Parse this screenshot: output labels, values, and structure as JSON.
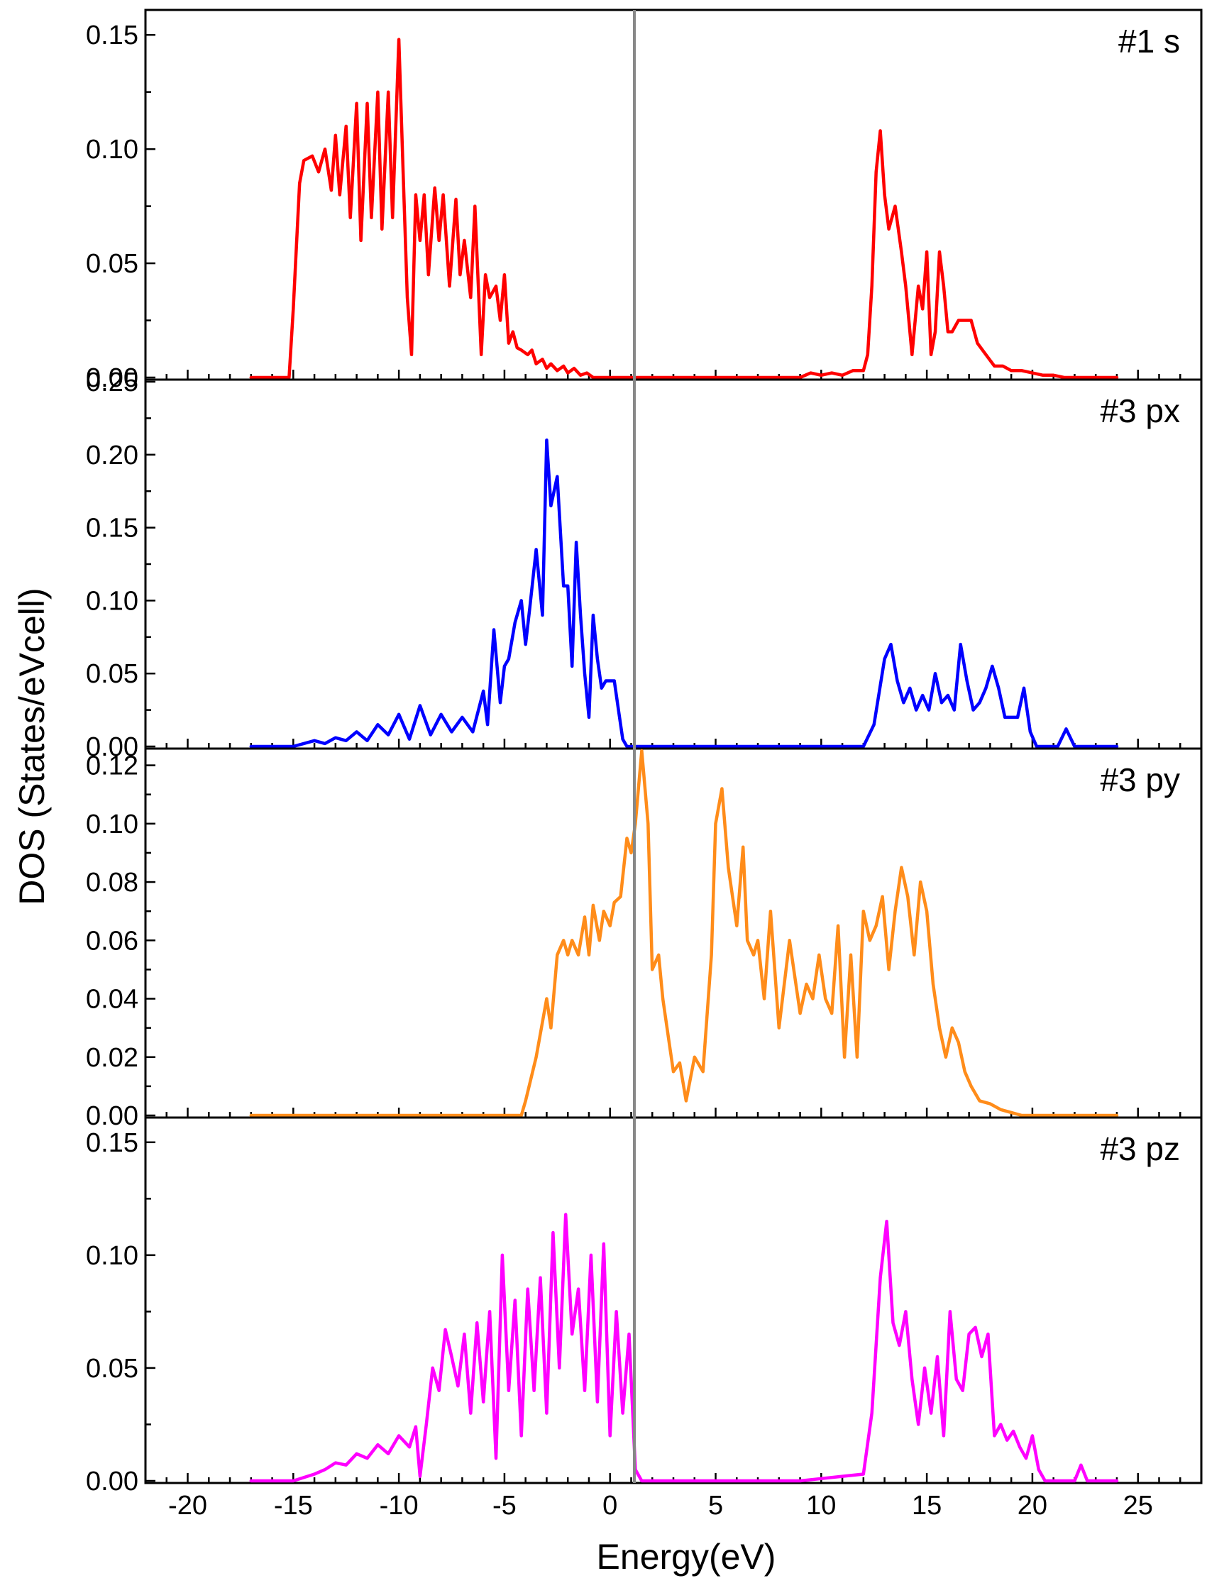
{
  "figure": {
    "ylabel": "DOS (States/eVcell)",
    "xlabel": "Energy(eV)",
    "fermi_level_color": "#888888"
  },
  "chart_data": [
    {
      "type": "line",
      "panel_label": "#1 s",
      "color": "#ff0000",
      "xlim": [
        -22,
        28
      ],
      "ylim": [
        0,
        0.16
      ],
      "xticks": [
        -20,
        -15,
        -10,
        -5,
        0,
        5,
        10,
        15,
        20,
        25
      ],
      "yticks": [
        0.0,
        0.05,
        0.1,
        0.15
      ],
      "ytick_labels": [
        "0.00",
        "0.05",
        "0.10",
        "0.15"
      ],
      "series": [
        {
          "x": [
            -17,
            -15.2,
            -15.0,
            -14.7,
            -14.5,
            -14.1,
            -13.8,
            -13.5,
            -13.2,
            -13.0,
            -12.8,
            -12.5,
            -12.3,
            -12.0,
            -11.8,
            -11.5,
            -11.3,
            -11.0,
            -10.8,
            -10.5,
            -10.3,
            -10.0,
            -9.8,
            -9.6,
            -9.4,
            -9.2,
            -9.0,
            -8.8,
            -8.6,
            -8.3,
            -8.1,
            -7.9,
            -7.6,
            -7.3,
            -7.1,
            -6.9,
            -6.6,
            -6.4,
            -6.1,
            -5.9,
            -5.7,
            -5.4,
            -5.2,
            -5.0,
            -4.8,
            -4.6,
            -4.4,
            -4.2,
            -3.9,
            -3.7,
            -3.5,
            -3.2,
            -3.0,
            -2.8,
            -2.5,
            -2.2,
            -2.0,
            -1.7,
            -1.4,
            -1.1,
            -0.8,
            -0.6,
            -0.4,
            -0.2,
            0.0,
            0.3,
            0.7,
            1.2,
            1.8,
            3,
            5,
            7,
            9,
            9.5,
            10.0,
            10.5,
            11.0,
            11.5,
            12.0,
            12.2,
            12.4,
            12.6,
            12.8,
            13.0,
            13.2,
            13.5,
            13.8,
            14.0,
            14.3,
            14.6,
            14.8,
            15.0,
            15.2,
            15.4,
            15.6,
            15.8,
            16.0,
            16.2,
            16.5,
            16.8,
            17.1,
            17.4,
            17.8,
            18.2,
            18.6,
            19.0,
            19.5,
            20.0,
            20.5,
            21.0,
            21.5,
            22,
            23,
            24
          ],
          "y": [
            0.0,
            0.0,
            0.03,
            0.085,
            0.095,
            0.097,
            0.09,
            0.1,
            0.082,
            0.106,
            0.08,
            0.11,
            0.07,
            0.12,
            0.06,
            0.12,
            0.07,
            0.125,
            0.065,
            0.125,
            0.07,
            0.148,
            0.09,
            0.035,
            0.01,
            0.08,
            0.06,
            0.08,
            0.045,
            0.083,
            0.06,
            0.08,
            0.04,
            0.078,
            0.045,
            0.06,
            0.035,
            0.075,
            0.01,
            0.045,
            0.035,
            0.04,
            0.025,
            0.045,
            0.015,
            0.02,
            0.013,
            0.012,
            0.01,
            0.012,
            0.006,
            0.008,
            0.004,
            0.006,
            0.003,
            0.005,
            0.002,
            0.004,
            0.001,
            0.002,
            0.0,
            0.0,
            0.0,
            0.0,
            0.0,
            0.0,
            0.0,
            0.0,
            0.0,
            0.0,
            0.0,
            0.0,
            0.0,
            0.002,
            0.001,
            0.002,
            0.001,
            0.003,
            0.003,
            0.01,
            0.04,
            0.09,
            0.108,
            0.08,
            0.065,
            0.075,
            0.055,
            0.04,
            0.01,
            0.04,
            0.03,
            0.055,
            0.01,
            0.02,
            0.055,
            0.04,
            0.02,
            0.02,
            0.025,
            0.025,
            0.025,
            0.015,
            0.01,
            0.005,
            0.005,
            0.003,
            0.003,
            0.002,
            0.001,
            0.001,
            0.0,
            0.0,
            0.0,
            0.0
          ]
        }
      ]
    },
    {
      "type": "line",
      "panel_label": "#3 px",
      "color": "#0000ff",
      "xlim": [
        -22,
        28
      ],
      "ylim": [
        0,
        0.25
      ],
      "xticks": [
        -20,
        -15,
        -10,
        -5,
        0,
        5,
        10,
        15,
        20,
        25
      ],
      "yticks": [
        0.0,
        0.05,
        0.1,
        0.15,
        0.2,
        0.25
      ],
      "ytick_labels": [
        "0.00",
        "0.05",
        "0.10",
        "0.15",
        "0.20",
        "0.25"
      ],
      "series": [
        {
          "x": [
            -17,
            -15,
            -14,
            -13.5,
            -13,
            -12.5,
            -12,
            -11.5,
            -11,
            -10.5,
            -10,
            -9.5,
            -9,
            -8.5,
            -8,
            -7.5,
            -7,
            -6.5,
            -6,
            -5.8,
            -5.5,
            -5.2,
            -5.0,
            -4.8,
            -4.5,
            -4.2,
            -4.0,
            -3.8,
            -3.5,
            -3.2,
            -3.0,
            -2.8,
            -2.5,
            -2.2,
            -2.0,
            -1.8,
            -1.6,
            -1.4,
            -1.2,
            -1.0,
            -0.8,
            -0.6,
            -0.4,
            -0.2,
            0.0,
            0.2,
            0.4,
            0.6,
            0.8,
            1.0,
            1.2,
            1.4,
            1.6,
            1.8,
            2.0,
            3,
            5,
            7,
            9,
            10,
            11,
            12,
            12.5,
            13,
            13.3,
            13.6,
            13.9,
            14.2,
            14.5,
            14.8,
            15.1,
            15.4,
            15.7,
            16,
            16.3,
            16.6,
            16.9,
            17.2,
            17.5,
            17.8,
            18.1,
            18.4,
            18.7,
            19.0,
            19.3,
            19.6,
            19.9,
            20.2,
            20.5,
            20.8,
            21.2,
            21.6,
            22.0,
            22.3,
            22.6,
            23,
            24
          ],
          "y": [
            0.0,
            0.0,
            0.004,
            0.002,
            0.006,
            0.004,
            0.01,
            0.004,
            0.015,
            0.008,
            0.022,
            0.005,
            0.028,
            0.008,
            0.022,
            0.01,
            0.02,
            0.01,
            0.038,
            0.015,
            0.08,
            0.03,
            0.055,
            0.06,
            0.085,
            0.1,
            0.07,
            0.095,
            0.135,
            0.09,
            0.21,
            0.165,
            0.185,
            0.11,
            0.11,
            0.055,
            0.14,
            0.09,
            0.05,
            0.02,
            0.09,
            0.06,
            0.04,
            0.045,
            0.045,
            0.045,
            0.025,
            0.005,
            0.0,
            0.0,
            0.0,
            0.0,
            0.0,
            0.0,
            0.0,
            0.0,
            0.0,
            0.0,
            0.0,
            0.0,
            0.0,
            0.0,
            0.015,
            0.06,
            0.07,
            0.045,
            0.03,
            0.04,
            0.025,
            0.035,
            0.025,
            0.05,
            0.03,
            0.035,
            0.025,
            0.07,
            0.045,
            0.025,
            0.03,
            0.04,
            0.055,
            0.04,
            0.02,
            0.02,
            0.02,
            0.04,
            0.01,
            0.0,
            0.0,
            0.0,
            0.0,
            0.012,
            0.0,
            0.0,
            0.0,
            0.0,
            0.0
          ]
        }
      ]
    },
    {
      "type": "line",
      "panel_label": "#3 py",
      "color": "#ff8c1a",
      "xlim": [
        -22,
        28
      ],
      "ylim": [
        0,
        0.125
      ],
      "xticks": [
        -20,
        -15,
        -10,
        -5,
        0,
        5,
        10,
        15,
        20,
        25
      ],
      "yticks": [
        0.0,
        0.02,
        0.04,
        0.06,
        0.08,
        0.1,
        0.12
      ],
      "ytick_labels": [
        "0.00",
        "0.02",
        "0.04",
        "0.06",
        "0.08",
        "0.10",
        "0.12"
      ],
      "series": [
        {
          "x": [
            -17,
            -10,
            -5,
            -4.2,
            -4.0,
            -3.5,
            -3.0,
            -2.8,
            -2.5,
            -2.2,
            -2.0,
            -1.8,
            -1.5,
            -1.2,
            -1.0,
            -0.8,
            -0.5,
            -0.3,
            0.0,
            0.2,
            0.5,
            0.8,
            1.0,
            1.2,
            1.5,
            1.8,
            2.0,
            2.3,
            2.5,
            2.8,
            3.0,
            3.3,
            3.6,
            4.0,
            4.4,
            4.8,
            5.0,
            5.3,
            5.6,
            6.0,
            6.3,
            6.5,
            6.8,
            7.0,
            7.3,
            7.6,
            8.0,
            8.5,
            9.0,
            9.3,
            9.6,
            9.9,
            10.2,
            10.5,
            10.8,
            11.1,
            11.4,
            11.7,
            12.0,
            12.3,
            12.6,
            12.9,
            13.2,
            13.5,
            13.8,
            14.1,
            14.4,
            14.7,
            15.0,
            15.3,
            15.6,
            15.9,
            16.2,
            16.5,
            16.8,
            17.1,
            17.5,
            18.0,
            18.5,
            19.0,
            19.5,
            20,
            21,
            22,
            24
          ],
          "y": [
            0.0,
            0.0,
            0.0,
            0.0,
            0.005,
            0.02,
            0.04,
            0.03,
            0.055,
            0.06,
            0.055,
            0.06,
            0.055,
            0.068,
            0.055,
            0.072,
            0.06,
            0.07,
            0.065,
            0.073,
            0.075,
            0.095,
            0.09,
            0.1,
            0.125,
            0.1,
            0.05,
            0.055,
            0.04,
            0.025,
            0.015,
            0.018,
            0.005,
            0.02,
            0.015,
            0.055,
            0.1,
            0.112,
            0.085,
            0.065,
            0.092,
            0.06,
            0.055,
            0.06,
            0.04,
            0.07,
            0.03,
            0.06,
            0.035,
            0.045,
            0.04,
            0.055,
            0.04,
            0.035,
            0.065,
            0.02,
            0.055,
            0.02,
            0.07,
            0.06,
            0.065,
            0.075,
            0.05,
            0.07,
            0.085,
            0.075,
            0.055,
            0.08,
            0.07,
            0.045,
            0.03,
            0.02,
            0.03,
            0.025,
            0.015,
            0.01,
            0.005,
            0.004,
            0.002,
            0.001,
            0.0,
            0.0,
            0.0,
            0.0,
            0.0
          ]
        }
      ]
    },
    {
      "type": "line",
      "panel_label": "#3 pz",
      "color": "#ff00ff",
      "xlim": [
        -22,
        28
      ],
      "ylim": [
        0,
        0.16
      ],
      "xticks": [
        -20,
        -15,
        -10,
        -5,
        0,
        5,
        10,
        15,
        20,
        25
      ],
      "yticks": [
        0.0,
        0.05,
        0.1,
        0.15
      ],
      "ytick_labels": [
        "0.00",
        "0.05",
        "0.10",
        "0.15"
      ],
      "series": [
        {
          "x": [
            -17,
            -15,
            -14,
            -13.5,
            -13,
            -12.5,
            -12,
            -11.5,
            -11,
            -10.5,
            -10,
            -9.5,
            -9.2,
            -9.0,
            -8.7,
            -8.4,
            -8.1,
            -7.8,
            -7.5,
            -7.2,
            -6.9,
            -6.6,
            -6.3,
            -6.0,
            -5.7,
            -5.4,
            -5.1,
            -4.8,
            -4.5,
            -4.2,
            -3.9,
            -3.6,
            -3.3,
            -3.0,
            -2.7,
            -2.4,
            -2.1,
            -1.8,
            -1.5,
            -1.2,
            -0.9,
            -0.6,
            -0.3,
            0.0,
            0.3,
            0.6,
            0.9,
            1.2,
            1.5,
            1.8,
            2.2,
            3,
            5,
            7,
            9,
            10,
            11,
            12,
            12.4,
            12.8,
            13.1,
            13.4,
            13.7,
            14.0,
            14.3,
            14.6,
            14.9,
            15.2,
            15.5,
            15.8,
            16.1,
            16.4,
            16.7,
            17.0,
            17.3,
            17.6,
            17.9,
            18.2,
            18.5,
            18.8,
            19.1,
            19.4,
            19.7,
            20.0,
            20.3,
            20.6,
            21.0,
            21.5,
            22.0,
            22.3,
            22.6,
            23,
            24
          ],
          "y": [
            0.0,
            0.0,
            0.003,
            0.005,
            0.008,
            0.007,
            0.012,
            0.01,
            0.016,
            0.012,
            0.02,
            0.015,
            0.024,
            0.002,
            0.025,
            0.05,
            0.04,
            0.067,
            0.055,
            0.042,
            0.065,
            0.03,
            0.07,
            0.035,
            0.075,
            0.01,
            0.1,
            0.04,
            0.08,
            0.02,
            0.085,
            0.04,
            0.09,
            0.03,
            0.11,
            0.05,
            0.118,
            0.065,
            0.085,
            0.04,
            0.1,
            0.035,
            0.105,
            0.02,
            0.075,
            0.03,
            0.065,
            0.005,
            0.0,
            0.0,
            0.0,
            0.0,
            0.0,
            0.0,
            0.0,
            0.001,
            0.002,
            0.003,
            0.03,
            0.09,
            0.115,
            0.07,
            0.06,
            0.075,
            0.045,
            0.025,
            0.05,
            0.03,
            0.055,
            0.02,
            0.075,
            0.045,
            0.04,
            0.065,
            0.068,
            0.055,
            0.065,
            0.02,
            0.025,
            0.018,
            0.022,
            0.015,
            0.01,
            0.02,
            0.005,
            0.0,
            0.0,
            0.0,
            0.0,
            0.007,
            0.0,
            0.0,
            0.0
          ]
        }
      ]
    }
  ]
}
